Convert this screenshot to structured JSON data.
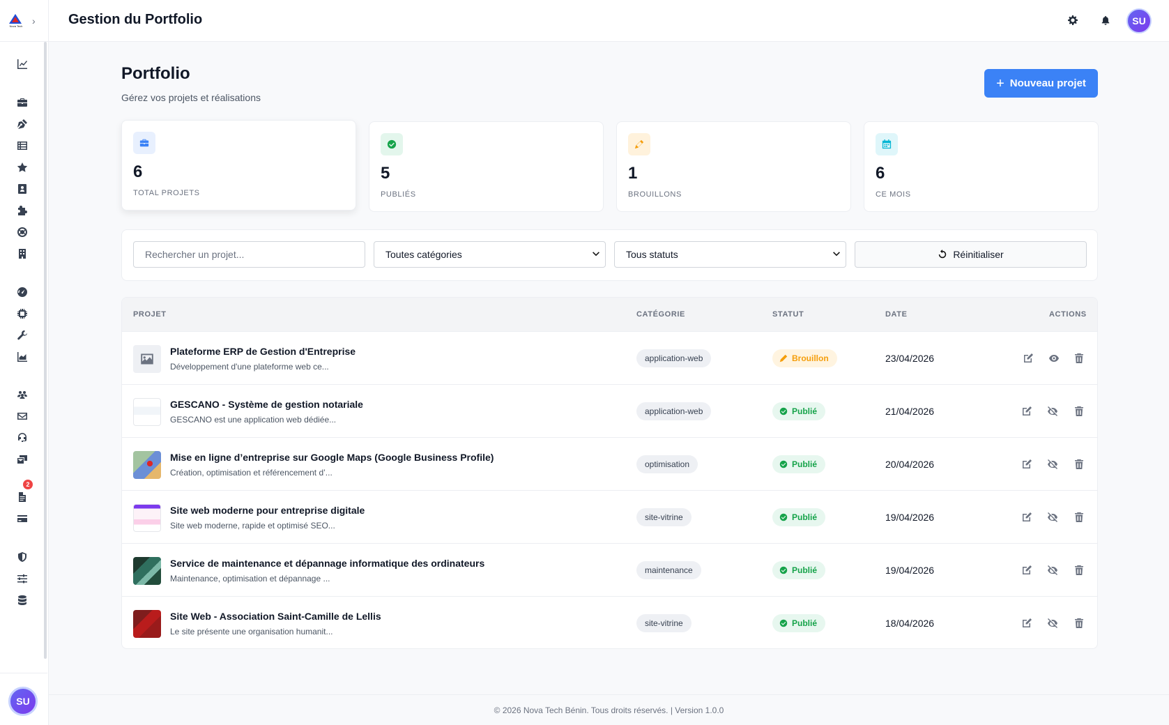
{
  "header": {
    "title": "Gestion du Portfolio",
    "avatar_initials": "SU"
  },
  "sidebar": {
    "logo_text": "Nova Tech",
    "icons": [
      "chart-line-icon",
      "briefcase-icon",
      "pen-nib-icon",
      "table-list-icon",
      "star-icon",
      "address-book-icon",
      "puzzle-icon",
      "life-ring-icon",
      "building-icon",
      "gauge-icon",
      "microchip-icon",
      "wrench-icon",
      "chart-area-icon",
      "users-icon",
      "envelope-icon",
      "headset-icon",
      "mail-bulk-icon",
      "file-icon",
      "credit-card-icon",
      "shield-icon",
      "sliders-icon",
      "database-icon"
    ],
    "badge_count": "2",
    "avatar_initials": "SU"
  },
  "page": {
    "title": "Portfolio",
    "subtitle": "Gérez vos projets et réalisations",
    "new_button": "Nouveau projet"
  },
  "stats": [
    {
      "value": "6",
      "label": "TOTAL PROJETS",
      "color": "#3b82f6",
      "bg": "#e8f0fe",
      "icon": "briefcase-icon"
    },
    {
      "value": "5",
      "label": "PUBLIÉS",
      "color": "#16a34a",
      "bg": "#e3f6ec",
      "icon": "check-circle-icon"
    },
    {
      "value": "1",
      "label": "BROUILLONS",
      "color": "#f59e0b",
      "bg": "#fff2dc",
      "icon": "pencil-icon"
    },
    {
      "value": "6",
      "label": "CE MOIS",
      "color": "#06b6d4",
      "bg": "#dff6fa",
      "icon": "calendar-icon"
    }
  ],
  "filters": {
    "search_placeholder": "Rechercher un projet...",
    "category": "Toutes catégories",
    "status": "Tous statuts",
    "reset": "Réinitialiser"
  },
  "table": {
    "headers": {
      "project": "PROJET",
      "category": "CATÉGORIE",
      "status": "STATUT",
      "date": "DATE",
      "actions": "ACTIONS"
    },
    "rows": [
      {
        "title": "Plateforme ERP de Gestion d'Entreprise",
        "desc": "Développement d'une plateforme web ce...",
        "category": "application-web",
        "status": "Brouillon",
        "date": "23/04/2026"
      },
      {
        "title": "GESCANO - Système de gestion notariale",
        "desc": "GESCANO est une application web dédiée...",
        "category": "application-web",
        "status": "Publié",
        "date": "21/04/2026"
      },
      {
        "title": "Mise en ligne d’entreprise sur Google Maps (Google Business Profile)",
        "desc": "Création, optimisation et référencement d’...",
        "category": "optimisation",
        "status": "Publié",
        "date": "20/04/2026"
      },
      {
        "title": "Site web moderne pour entreprise digitale",
        "desc": "Site web moderne, rapide et optimisé SEO...",
        "category": "site-vitrine",
        "status": "Publié",
        "date": "19/04/2026"
      },
      {
        "title": "Service de maintenance et dépannage informatique des ordinateurs",
        "desc": "Maintenance, optimisation et dépannage ...",
        "category": "maintenance",
        "status": "Publié",
        "date": "19/04/2026"
      },
      {
        "title": "Site Web - Association Saint-Camille de Lellis",
        "desc": "Le site présente une organisation humanit...",
        "category": "site-vitrine",
        "status": "Publié",
        "date": "18/04/2026"
      }
    ]
  },
  "footer": {
    "text": "© 2026 Nova Tech Bénin. Tous droits réservés. | Version 1.0.0"
  }
}
